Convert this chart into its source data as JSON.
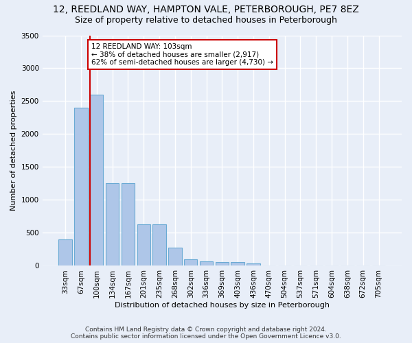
{
  "title1": "12, REEDLAND WAY, HAMPTON VALE, PETERBOROUGH, PE7 8EZ",
  "title2": "Size of property relative to detached houses in Peterborough",
  "xlabel": "Distribution of detached houses by size in Peterborough",
  "ylabel": "Number of detached properties",
  "categories": [
    "33sqm",
    "67sqm",
    "100sqm",
    "134sqm",
    "167sqm",
    "201sqm",
    "235sqm",
    "268sqm",
    "302sqm",
    "336sqm",
    "369sqm",
    "403sqm",
    "436sqm",
    "470sqm",
    "504sqm",
    "537sqm",
    "571sqm",
    "604sqm",
    "638sqm",
    "672sqm",
    "705sqm"
  ],
  "values": [
    400,
    2400,
    2600,
    1250,
    1250,
    630,
    630,
    280,
    100,
    70,
    55,
    55,
    40,
    0,
    0,
    0,
    0,
    0,
    0,
    0,
    0
  ],
  "bar_color": "#aec6e8",
  "bar_edge_color": "#6aaad4",
  "vline_color": "#cc0000",
  "annotation_text": "12 REEDLAND WAY: 103sqm\n← 38% of detached houses are smaller (2,917)\n62% of semi-detached houses are larger (4,730) →",
  "annotation_box_color": "#ffffff",
  "annotation_box_edge": "#cc0000",
  "ylim": [
    0,
    3500
  ],
  "yticks": [
    0,
    500,
    1000,
    1500,
    2000,
    2500,
    3000,
    3500
  ],
  "footnote1": "Contains HM Land Registry data © Crown copyright and database right 2024.",
  "footnote2": "Contains public sector information licensed under the Open Government Licence v3.0.",
  "bg_color": "#e8eef8",
  "grid_color": "#ffffff",
  "title1_fontsize": 10,
  "title2_fontsize": 9,
  "axis_label_fontsize": 8,
  "tick_fontsize": 7.5,
  "footnote_fontsize": 6.5
}
